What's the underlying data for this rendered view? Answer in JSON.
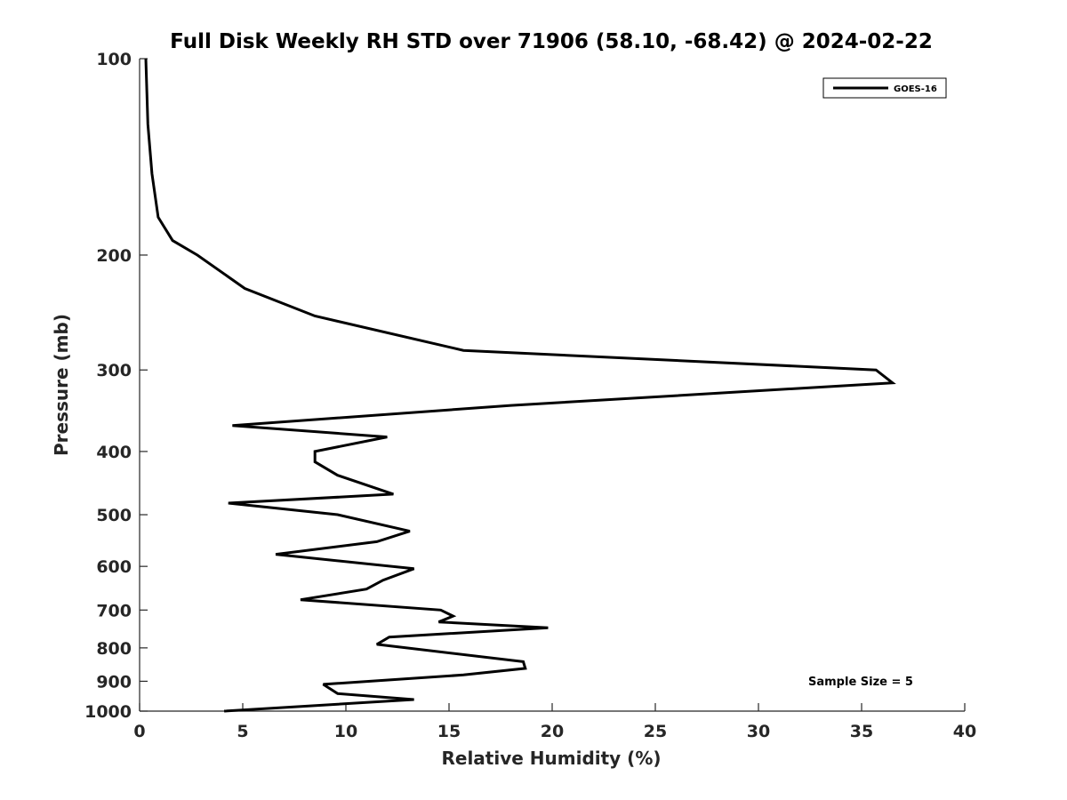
{
  "chart_data": {
    "type": "line",
    "title": "Full Disk Weekly RH STD over 71906 (58.10, -68.42) @ 2024-02-22",
    "xlabel": "Relative Humidity (%)",
    "ylabel": "Pressure (mb)",
    "xlim": [
      0,
      40
    ],
    "ylim": [
      100,
      1000
    ],
    "y_scale": "log",
    "y_inverted": true,
    "x_ticks": [
      0,
      5,
      10,
      15,
      20,
      25,
      30,
      35,
      40
    ],
    "y_ticks": [
      100,
      200,
      300,
      400,
      500,
      600,
      700,
      800,
      900,
      1000
    ],
    "grid": false,
    "legend_position": "top-right",
    "annotation": "Sample Size = 5",
    "series": [
      {
        "name": "GOES-16",
        "color": "#000000",
        "points": [
          [
            0.3,
            100
          ],
          [
            0.4,
            126
          ],
          [
            0.6,
            150
          ],
          [
            0.9,
            175
          ],
          [
            1.6,
            190
          ],
          [
            2.8,
            200
          ],
          [
            5.1,
            225
          ],
          [
            8.5,
            248
          ],
          [
            15.7,
            280
          ],
          [
            35.7,
            300
          ],
          [
            36.5,
            314
          ],
          [
            18.0,
            340
          ],
          [
            4.5,
            365
          ],
          [
            12.0,
            380
          ],
          [
            8.5,
            400
          ],
          [
            8.5,
            415
          ],
          [
            9.6,
            435
          ],
          [
            12.3,
            465
          ],
          [
            4.3,
            480
          ],
          [
            9.6,
            500
          ],
          [
            13.1,
            530
          ],
          [
            11.5,
            550
          ],
          [
            6.6,
            575
          ],
          [
            13.3,
            605
          ],
          [
            11.8,
            630
          ],
          [
            11.0,
            650
          ],
          [
            7.8,
            675
          ],
          [
            14.6,
            700
          ],
          [
            15.2,
            715
          ],
          [
            14.5,
            730
          ],
          [
            19.8,
            745
          ],
          [
            12.1,
            770
          ],
          [
            11.5,
            790
          ],
          [
            18.6,
            840
          ],
          [
            18.7,
            860
          ],
          [
            15.7,
            880
          ],
          [
            8.9,
            910
          ],
          [
            9.6,
            940
          ],
          [
            13.3,
            960
          ],
          [
            4.1,
            1000
          ]
        ]
      }
    ]
  }
}
